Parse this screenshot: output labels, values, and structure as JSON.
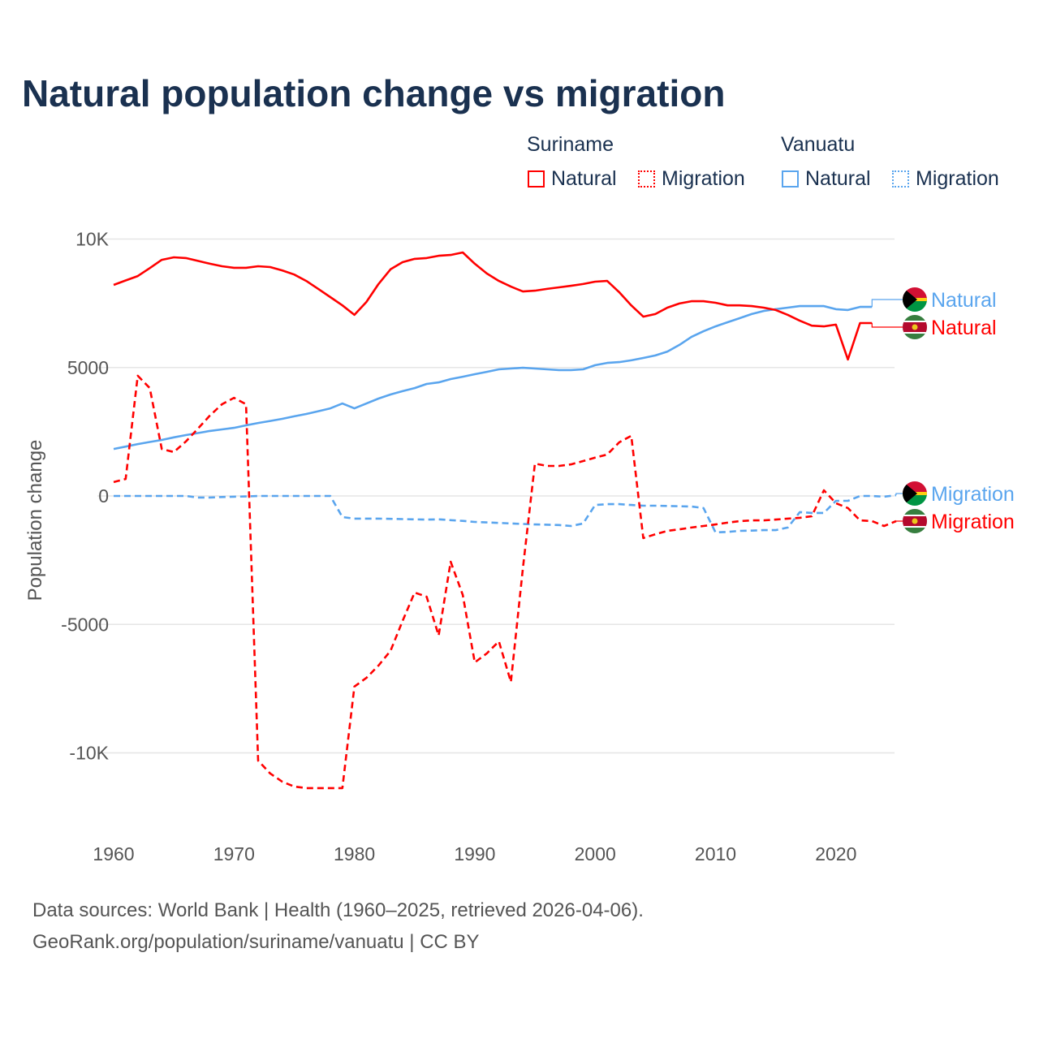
{
  "title": "Natural population change vs migration",
  "legend": {
    "groups": [
      {
        "country": "Suriname",
        "items": [
          "Natural",
          "Migration"
        ],
        "color": "#ff0000"
      },
      {
        "country": "Vanuatu",
        "items": [
          "Natural",
          "Migration"
        ],
        "color": "#5aa5ee"
      }
    ]
  },
  "footer": {
    "line1": "Data sources: World Bank | Health (1960–2025, retrieved 2026-04-06).",
    "line2": "GeoRank.org/population/suriname/vanuatu | CC BY"
  },
  "chart_data": {
    "type": "line",
    "title": "Natural population change vs migration",
    "xlabel": "",
    "ylabel": "Population change",
    "xlim": [
      1960,
      2025
    ],
    "ylim": [
      -12000,
      10500
    ],
    "grid": true,
    "legend_position": "top-right",
    "x_ticks": [
      1960,
      1970,
      1980,
      1990,
      2000,
      2010,
      2020
    ],
    "x_tick_labels": [
      "1960",
      "1970",
      "1980",
      "1990",
      "2000",
      "2010",
      "2020"
    ],
    "y_ticks": [
      10000,
      5000,
      0,
      -5000,
      -10000
    ],
    "y_tick_labels": [
      "10K",
      "5000",
      "0",
      "-5000",
      "-10K"
    ],
    "series": [
      {
        "name": "Suriname Natural",
        "end_label": "Natural",
        "flag": "suriname",
        "color": "#ff0000",
        "dash": "solid",
        "start_year": 1960,
        "values": [
          8215,
          8390,
          8560,
          8870,
          9190,
          9290,
          9260,
          9150,
          9040,
          8940,
          8880,
          8880,
          8940,
          8910,
          8780,
          8620,
          8370,
          8060,
          7740,
          7420,
          7050,
          7550,
          8250,
          8820,
          9100,
          9230,
          9260,
          9350,
          9380,
          9480,
          9040,
          8660,
          8370,
          8150,
          7960,
          7990,
          8060,
          8120,
          8180,
          8250,
          8340,
          8370,
          7930,
          7420,
          6980,
          7080,
          7330,
          7490,
          7580,
          7580,
          7520,
          7420,
          7420,
          7390,
          7330,
          7240,
          7050,
          6820,
          6630,
          6600,
          6670,
          5310,
          6730,
          6730
        ]
      },
      {
        "name": "Vanuatu Natural",
        "end_label": "Natural",
        "flag": "vanuatu",
        "color": "#5aa5ee",
        "dash": "solid",
        "start_year": 1960,
        "values": [
          1830,
          1920,
          2020,
          2100,
          2180,
          2280,
          2370,
          2450,
          2530,
          2590,
          2650,
          2750,
          2840,
          2920,
          3000,
          3100,
          3190,
          3300,
          3410,
          3600,
          3410,
          3600,
          3790,
          3950,
          4080,
          4200,
          4360,
          4420,
          4550,
          4640,
          4740,
          4830,
          4930,
          4960,
          4990,
          4960,
          4930,
          4900,
          4900,
          4930,
          5090,
          5180,
          5210,
          5280,
          5370,
          5470,
          5620,
          5880,
          6190,
          6410,
          6600,
          6760,
          6920,
          7080,
          7200,
          7270,
          7330,
          7390,
          7390,
          7390,
          7270,
          7240,
          7360,
          7360
        ]
      },
      {
        "name": "Suriname Migration",
        "end_label": "Migration",
        "flag": "suriname",
        "color": "#ff0000",
        "dash": "dashed",
        "start_year": 1960,
        "values": [
          540,
          660,
          4680,
          4200,
          1830,
          1710,
          2120,
          2620,
          3130,
          3570,
          3820,
          3570,
          -10300,
          -10800,
          -11120,
          -11310,
          -11370,
          -11370,
          -11370,
          -11370,
          -7420,
          -7080,
          -6600,
          -6030,
          -4870,
          -3760,
          -3920,
          -5430,
          -2560,
          -3850,
          -6480,
          -6130,
          -5660,
          -7240,
          -2810,
          1260,
          1170,
          1170,
          1230,
          1360,
          1490,
          1610,
          2090,
          2340,
          -1640,
          -1490,
          -1360,
          -1300,
          -1230,
          -1170,
          -1110,
          -1040,
          -980,
          -950,
          -950,
          -920,
          -880,
          -850,
          -790,
          220,
          -280,
          -470,
          -950,
          -980,
          -1170,
          -980
        ]
      },
      {
        "name": "Vanuatu Migration",
        "end_label": "Migration",
        "flag": "vanuatu",
        "color": "#5aa5ee",
        "dash": "dashed",
        "start_year": 1960,
        "values": [
          0,
          0,
          0,
          0,
          0,
          0,
          0,
          -60,
          -60,
          -40,
          -30,
          -20,
          0,
          0,
          0,
          0,
          0,
          0,
          0,
          -820,
          -880,
          -880,
          -880,
          -890,
          -900,
          -910,
          -920,
          -910,
          -940,
          -970,
          -1010,
          -1030,
          -1050,
          -1070,
          -1090,
          -1110,
          -1120,
          -1130,
          -1170,
          -1070,
          -350,
          -320,
          -320,
          -350,
          -380,
          -380,
          -390,
          -400,
          -410,
          -470,
          -1420,
          -1400,
          -1360,
          -1350,
          -1330,
          -1330,
          -1230,
          -630,
          -660,
          -660,
          -190,
          -190,
          0,
          0,
          -30,
          30
        ]
      }
    ]
  }
}
